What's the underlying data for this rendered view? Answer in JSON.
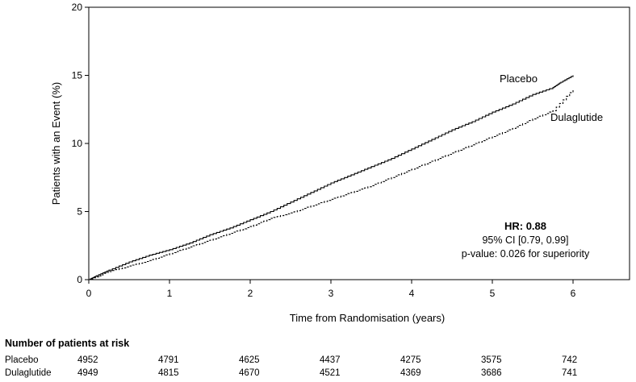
{
  "chart_data": {
    "type": "line",
    "xlabel": "Time from Randomisation (years)",
    "ylabel": "Patients with an Event (%)",
    "xlim": [
      0,
      6.7
    ],
    "ylim": [
      0,
      20
    ],
    "xticks": [
      0,
      1,
      2,
      3,
      4,
      5,
      6
    ],
    "yticks": [
      0,
      5,
      10,
      15,
      20
    ],
    "grid": false,
    "series": [
      {
        "name": "Placebo",
        "style": "solid",
        "color": "#000000",
        "x": [
          0,
          0.1,
          0.25,
          0.5,
          0.75,
          1.0,
          1.25,
          1.5,
          1.75,
          2.0,
          2.25,
          2.5,
          2.75,
          3.0,
          3.25,
          3.5,
          3.75,
          4.0,
          4.25,
          4.5,
          4.75,
          5.0,
          5.25,
          5.5,
          5.75,
          5.85,
          6.0
        ],
        "values": [
          0,
          0.3,
          0.7,
          1.3,
          1.8,
          2.2,
          2.7,
          3.3,
          3.8,
          4.4,
          5.0,
          5.7,
          6.4,
          7.1,
          7.7,
          8.3,
          8.9,
          9.6,
          10.3,
          11.0,
          11.6,
          12.3,
          12.9,
          13.6,
          14.1,
          14.5,
          15.0
        ]
      },
      {
        "name": "Dulaglutide",
        "style": "dashed",
        "color": "#000000",
        "x": [
          0,
          0.1,
          0.25,
          0.5,
          0.75,
          1.0,
          1.25,
          1.5,
          1.75,
          2.0,
          2.25,
          2.5,
          2.75,
          3.0,
          3.25,
          3.5,
          3.75,
          4.0,
          4.25,
          4.5,
          4.75,
          5.0,
          5.25,
          5.5,
          5.75,
          6.0
        ],
        "values": [
          0,
          0.2,
          0.6,
          1.0,
          1.4,
          1.9,
          2.4,
          2.9,
          3.4,
          3.9,
          4.5,
          4.9,
          5.4,
          5.9,
          6.4,
          6.9,
          7.5,
          8.1,
          8.7,
          9.3,
          9.9,
          10.5,
          11.1,
          11.8,
          12.4,
          14.0
        ]
      }
    ],
    "annotations": {
      "hr": "HR: 0.88",
      "ci": "95% CI [0.79, 0.99]",
      "p": "p-value: 0.026 for superiority"
    }
  },
  "risk_table": {
    "title": "Number of patients at risk",
    "rows": [
      {
        "label": "Placebo",
        "values": [
          "4952",
          "4791",
          "4625",
          "4437",
          "4275",
          "3575",
          "742"
        ]
      },
      {
        "label": "Dulaglutide",
        "values": [
          "4949",
          "4815",
          "4670",
          "4521",
          "4369",
          "3686",
          "741"
        ]
      }
    ]
  }
}
